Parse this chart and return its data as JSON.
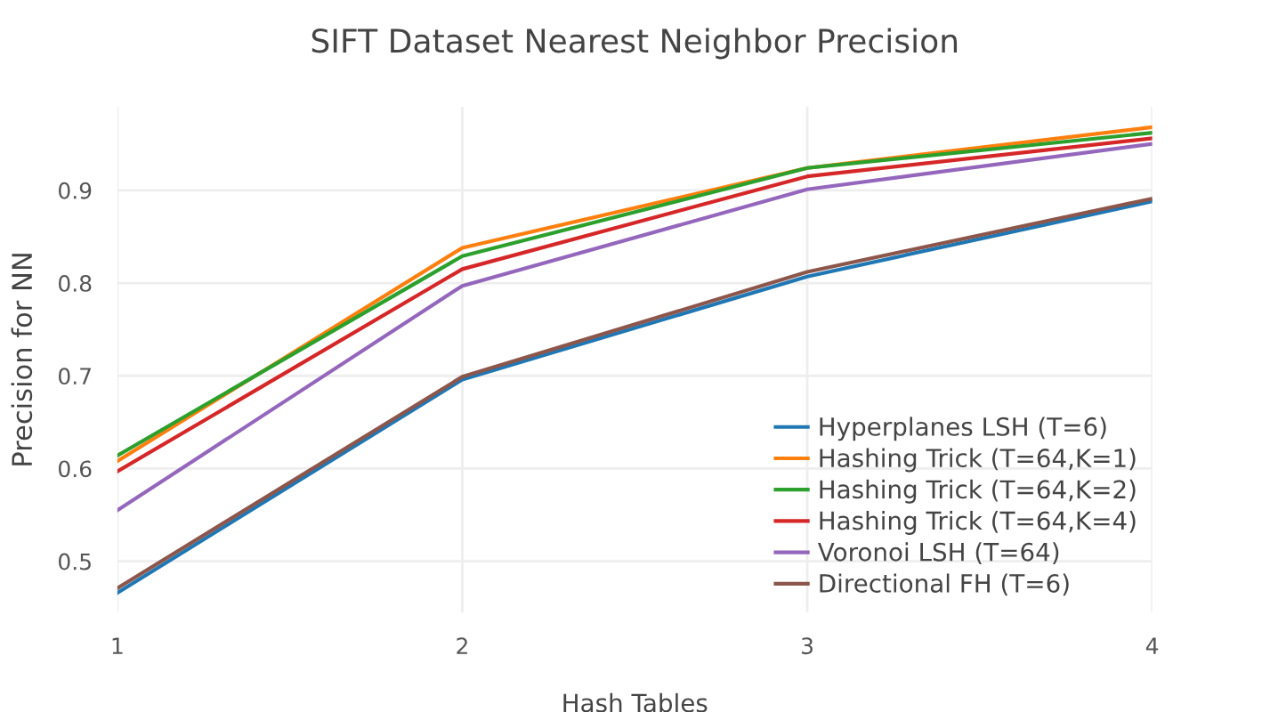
{
  "chart_data": {
    "type": "line",
    "title": "SIFT Dataset Nearest Neighbor Precision",
    "xlabel": "Hash Tables",
    "ylabel": "Precision for NN",
    "x": [
      1,
      2,
      3,
      4
    ],
    "xlim": [
      1,
      4
    ],
    "xticks": [
      1,
      2,
      3,
      4
    ],
    "ylim": [
      0.445,
      0.99
    ],
    "yticks": [
      0.5,
      0.6,
      0.7,
      0.8,
      0.9
    ],
    "grid": true,
    "legend": "bottom right",
    "marker": "none",
    "line_style": "solid",
    "series": [
      {
        "name": "Hyperplanes LSH (T=6)",
        "color": "#1f77b4",
        "values": [
          0.466,
          0.696,
          0.807,
          0.888
        ]
      },
      {
        "name": "Hashing Trick (T=64,K=1)",
        "color": "#ff7f0e",
        "values": [
          0.608,
          0.838,
          0.924,
          0.968
        ]
      },
      {
        "name": "Hashing Trick (T=64,K=2)",
        "color": "#2ca02c",
        "values": [
          0.614,
          0.829,
          0.924,
          0.962
        ]
      },
      {
        "name": "Hashing Trick (T=64,K=4)",
        "color": "#d62728",
        "values": [
          0.597,
          0.815,
          0.915,
          0.956
        ]
      },
      {
        "name": "Voronoi LSH (T=64)",
        "color": "#9467bd",
        "values": [
          0.555,
          0.797,
          0.901,
          0.95
        ]
      },
      {
        "name": "Directional FH (T=6)",
        "color": "#8c564b",
        "values": [
          0.471,
          0.699,
          0.812,
          0.891
        ]
      }
    ]
  }
}
